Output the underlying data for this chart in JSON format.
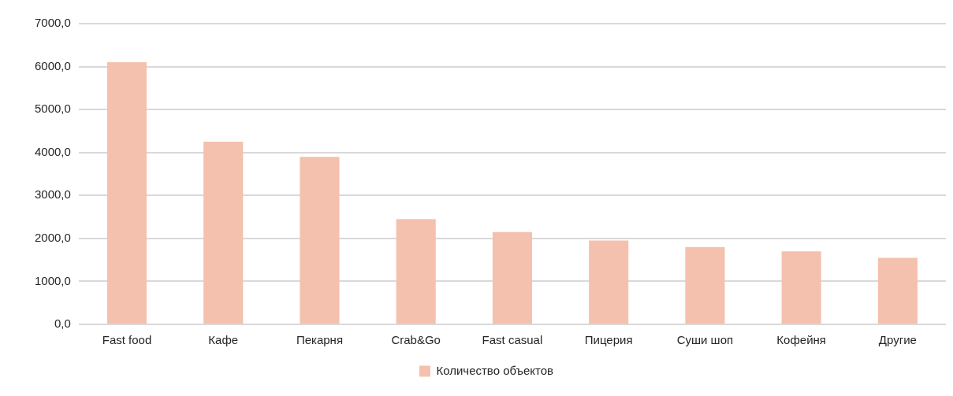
{
  "chart_data": {
    "type": "bar",
    "categories": [
      "Fast food",
      "Кафе",
      "Пекарня",
      "Crab&Go",
      "Fast casual",
      "Пицерия",
      "Суши шоп",
      "Кофейня",
      "Другие"
    ],
    "series": [
      {
        "name": "Количество объектов",
        "color": "#f4c1ae",
        "values": [
          6100,
          4250,
          3900,
          2450,
          2150,
          1950,
          1800,
          1700,
          1550
        ]
      }
    ],
    "ylim": [
      0,
      7000
    ],
    "yticks": [
      {
        "value": 0,
        "label": "0,0"
      },
      {
        "value": 1000,
        "label": "1000,0"
      },
      {
        "value": 2000,
        "label": "2000,0"
      },
      {
        "value": 3000,
        "label": "3000,0"
      },
      {
        "value": 4000,
        "label": "4000,0"
      },
      {
        "value": 5000,
        "label": "5000,0"
      },
      {
        "value": 6000,
        "label": "6000,0"
      },
      {
        "value": 7000,
        "label": "7000,0"
      }
    ],
    "grid": "y",
    "legend": "bottom"
  }
}
